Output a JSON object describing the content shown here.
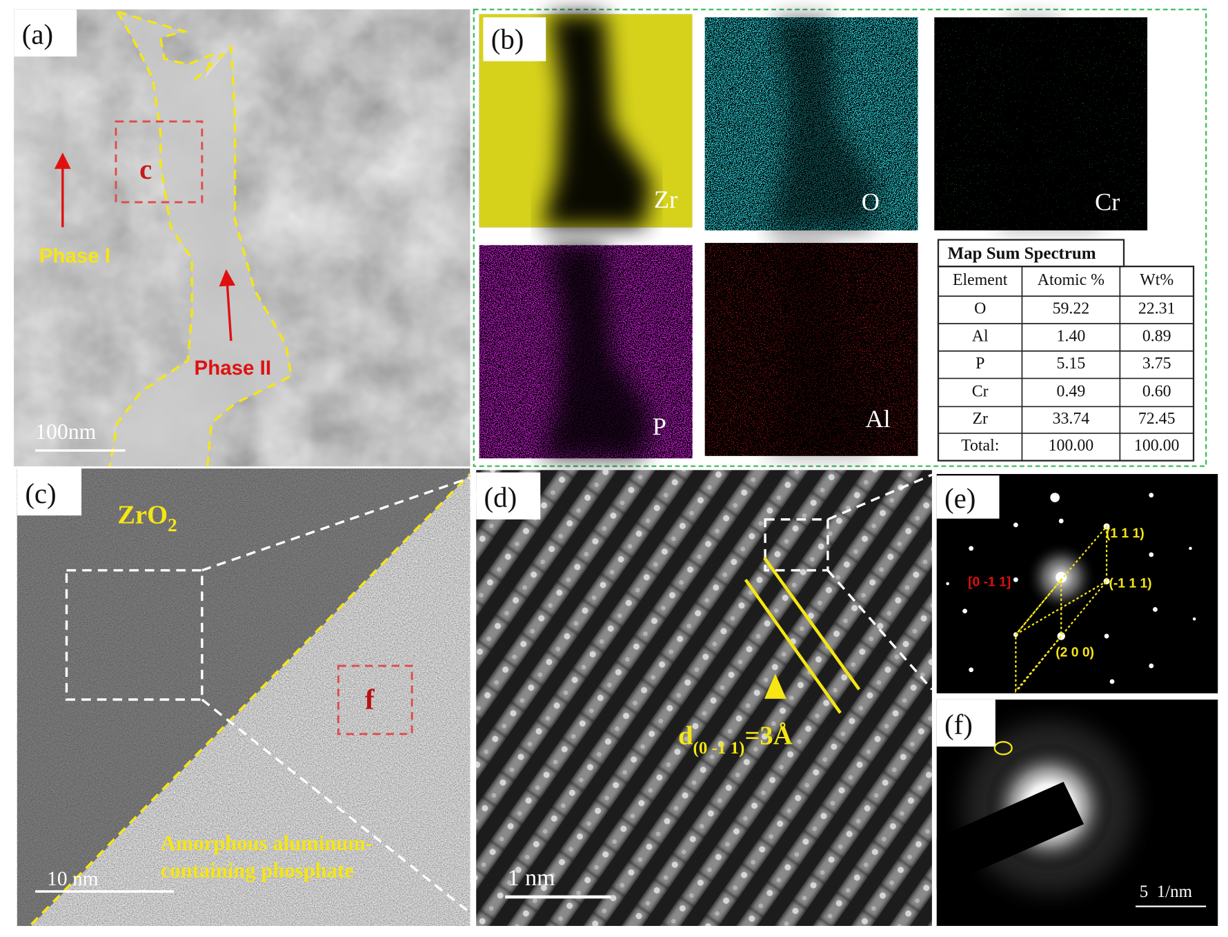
{
  "panels": {
    "a": {
      "label": "(a)",
      "box_label": "c",
      "phase_1": "Phase I",
      "phase_2": "Phase II",
      "scale_bar": "100nm"
    },
    "b": {
      "label": "(b)",
      "maps": [
        "Zr",
        "O",
        "Cr",
        "P",
        "Al"
      ],
      "table": {
        "title": "Map Sum Spectrum",
        "header": [
          "Element",
          "Atomic %",
          "Wt%"
        ],
        "rows": [
          [
            "O",
            "59.22",
            "22.31"
          ],
          [
            "Al",
            "1.40",
            "0.89"
          ],
          [
            "P",
            "5.15",
            "3.75"
          ],
          [
            "Cr",
            "0.49",
            "0.60"
          ],
          [
            "Zr",
            "33.74",
            "72.45"
          ],
          [
            "Total:",
            "100.00",
            "100.00"
          ]
        ]
      }
    },
    "c": {
      "label": "(c)",
      "phase": "ZrO",
      "phase_sub": "2",
      "box_label": "f",
      "amorphous_line_1": "Amorphous aluminum-",
      "amorphous_line_2": "containing phosphate",
      "scale_bar": "10 nm"
    },
    "d": {
      "label": "(d)",
      "spacing_symbol": "d",
      "spacing_index": "(0 -1 1)",
      "spacing_value": "=3Å",
      "scale_bar": "1 nm"
    },
    "e": {
      "label": "(e)",
      "zone_axis": "[0 -1 1]",
      "spots": [
        "(1 1 1)",
        "(-1 1 1)",
        "(2 0 0)"
      ]
    },
    "f": {
      "label": "(f)",
      "scale_bar": "5  1/nm"
    }
  }
}
